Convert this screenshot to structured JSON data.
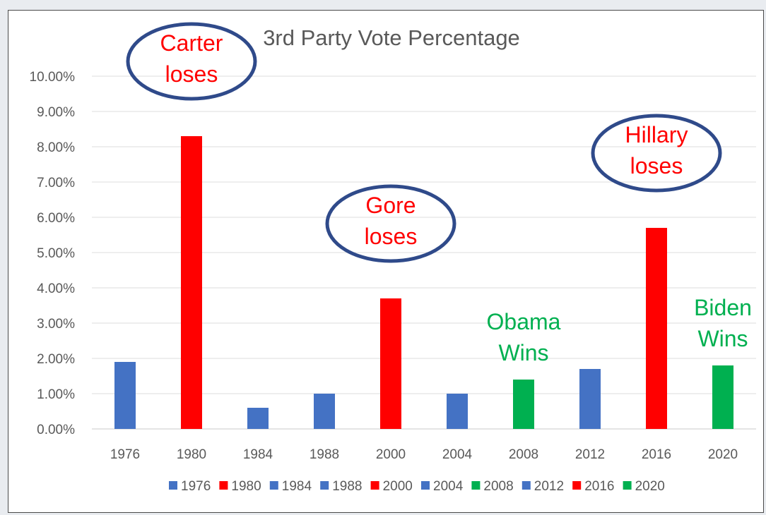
{
  "chart_data": {
    "type": "bar",
    "title": "3rd Party Vote Percentage",
    "xlabel": "",
    "ylabel": "",
    "categories": [
      "1976",
      "1980",
      "1984",
      "1988",
      "2000",
      "2004",
      "2008",
      "2012",
      "2016",
      "2020"
    ],
    "values": [
      1.9,
      8.3,
      0.6,
      1.0,
      3.7,
      1.0,
      1.4,
      1.7,
      5.7,
      1.8
    ],
    "bar_colors": [
      "#4472c4",
      "#ff0000",
      "#4472c4",
      "#4472c4",
      "#ff0000",
      "#4472c4",
      "#00b050",
      "#4472c4",
      "#ff0000",
      "#00b050"
    ],
    "ylim": [
      0,
      10
    ],
    "yticks": [
      "0.00%",
      "1.00%",
      "2.00%",
      "3.00%",
      "4.00%",
      "5.00%",
      "6.00%",
      "7.00%",
      "8.00%",
      "9.00%",
      "10.00%"
    ],
    "grid": true,
    "legend_position": "bottom",
    "legend": [
      "1976",
      "1980",
      "1984",
      "1988",
      "2000",
      "2004",
      "2008",
      "2012",
      "2016",
      "2020"
    ],
    "annotations": [
      {
        "category": "1980",
        "lines": [
          "Carter",
          "loses"
        ],
        "color": "#ff0000",
        "circled": true
      },
      {
        "category": "2000",
        "lines": [
          "Gore",
          "loses"
        ],
        "color": "#ff0000",
        "circled": true
      },
      {
        "category": "2008",
        "lines": [
          "Obama",
          "Wins"
        ],
        "color": "#00b050",
        "circled": false
      },
      {
        "category": "2016",
        "lines": [
          "Hillary",
          "loses"
        ],
        "color": "#ff0000",
        "circled": true
      },
      {
        "category": "2020",
        "lines": [
          "Biden",
          "Wins"
        ],
        "color": "#00b050",
        "circled": false
      }
    ],
    "annotation_circle_color": "#2f4a8a"
  }
}
